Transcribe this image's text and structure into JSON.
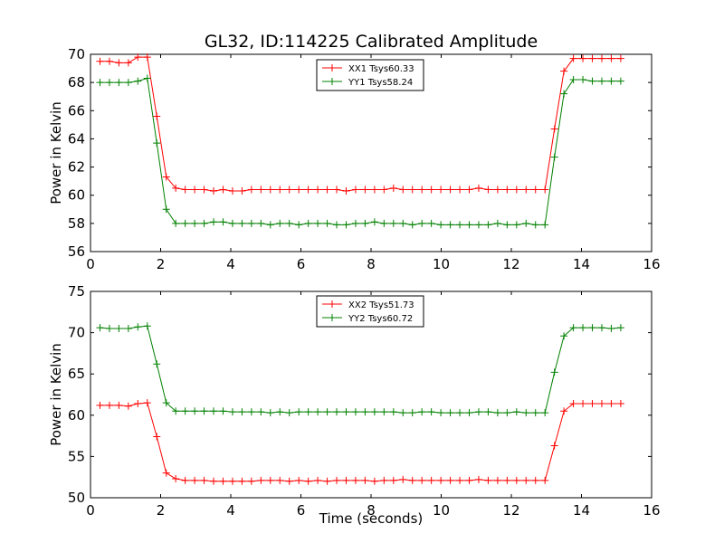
{
  "figure": {
    "title": "GL32, ID:114225 Calibrated Amplitude"
  },
  "chart_data": [
    {
      "type": "line",
      "title": "GL32, ID:114225 Calibrated Amplitude",
      "xlabel": "",
      "ylabel": "Power in Kelvin",
      "xlim": [
        0,
        16
      ],
      "ylim": [
        56,
        70
      ],
      "xticks": [
        0,
        2,
        4,
        6,
        8,
        10,
        12,
        14,
        16
      ],
      "yticks": [
        56,
        58,
        60,
        62,
        64,
        66,
        68,
        70
      ],
      "grid": false,
      "legend_position": "top-center",
      "x": [
        0.27,
        0.54,
        0.81,
        1.08,
        1.35,
        1.62,
        1.89,
        2.16,
        2.43,
        2.7,
        2.97,
        3.24,
        3.51,
        3.78,
        4.05,
        4.32,
        4.59,
        4.86,
        5.13,
        5.4,
        5.67,
        5.94,
        6.21,
        6.48,
        6.75,
        7.02,
        7.29,
        7.56,
        7.83,
        8.1,
        8.37,
        8.64,
        8.91,
        9.18,
        9.45,
        9.72,
        9.99,
        10.26,
        10.53,
        10.8,
        11.07,
        11.34,
        11.61,
        11.88,
        12.15,
        12.42,
        12.69,
        12.96,
        13.23,
        13.5,
        13.77,
        14.04,
        14.31,
        14.58,
        14.85,
        15.12
      ],
      "series": [
        {
          "name": "XX1 Tsys60.33",
          "color": "#ff0000",
          "values": [
            69.5,
            69.5,
            69.4,
            69.4,
            69.8,
            69.8,
            65.6,
            61.3,
            60.5,
            60.4,
            60.4,
            60.4,
            60.3,
            60.4,
            60.3,
            60.3,
            60.4,
            60.4,
            60.4,
            60.4,
            60.4,
            60.4,
            60.4,
            60.4,
            60.4,
            60.4,
            60.3,
            60.4,
            60.4,
            60.4,
            60.4,
            60.5,
            60.4,
            60.4,
            60.4,
            60.4,
            60.4,
            60.4,
            60.4,
            60.4,
            60.5,
            60.4,
            60.4,
            60.4,
            60.4,
            60.4,
            60.4,
            60.4,
            64.7,
            68.8,
            69.7,
            69.7,
            69.7,
            69.7,
            69.7,
            69.7
          ]
        },
        {
          "name": "YY1 Tsys58.24",
          "color": "#008000",
          "values": [
            68.0,
            68.0,
            68.0,
            68.0,
            68.1,
            68.3,
            63.7,
            59.0,
            58.0,
            58.0,
            58.0,
            58.0,
            58.1,
            58.1,
            58.0,
            58.0,
            58.0,
            58.0,
            57.9,
            58.0,
            58.0,
            57.9,
            58.0,
            58.0,
            58.0,
            57.9,
            57.9,
            58.0,
            58.0,
            58.1,
            58.0,
            58.0,
            58.0,
            57.9,
            58.0,
            58.0,
            57.9,
            57.9,
            57.9,
            57.9,
            57.9,
            57.9,
            58.0,
            57.9,
            57.9,
            58.0,
            57.9,
            57.9,
            62.7,
            67.2,
            68.2,
            68.2,
            68.1,
            68.1,
            68.1,
            68.1
          ]
        }
      ]
    },
    {
      "type": "line",
      "title": "",
      "xlabel": "Time (seconds)",
      "ylabel": "Power in Kelvin",
      "xlim": [
        0,
        16
      ],
      "ylim": [
        50,
        75
      ],
      "xticks": [
        0,
        2,
        4,
        6,
        8,
        10,
        12,
        14,
        16
      ],
      "yticks": [
        50,
        55,
        60,
        65,
        70,
        75
      ],
      "grid": false,
      "legend_position": "top-center",
      "x": [
        0.27,
        0.54,
        0.81,
        1.08,
        1.35,
        1.62,
        1.89,
        2.16,
        2.43,
        2.7,
        2.97,
        3.24,
        3.51,
        3.78,
        4.05,
        4.32,
        4.59,
        4.86,
        5.13,
        5.4,
        5.67,
        5.94,
        6.21,
        6.48,
        6.75,
        7.02,
        7.29,
        7.56,
        7.83,
        8.1,
        8.37,
        8.64,
        8.91,
        9.18,
        9.45,
        9.72,
        9.99,
        10.26,
        10.53,
        10.8,
        11.07,
        11.34,
        11.61,
        11.88,
        12.15,
        12.42,
        12.69,
        12.96,
        13.23,
        13.5,
        13.77,
        14.04,
        14.31,
        14.58,
        14.85,
        15.12
      ],
      "series": [
        {
          "name": "XX2 Tsys51.73",
          "color": "#ff0000",
          "values": [
            61.2,
            61.2,
            61.2,
            61.1,
            61.4,
            61.5,
            57.4,
            53.0,
            52.3,
            52.1,
            52.1,
            52.1,
            52.0,
            52.0,
            52.0,
            52.0,
            52.0,
            52.1,
            52.1,
            52.1,
            52.0,
            52.1,
            52.0,
            52.1,
            52.0,
            52.1,
            52.1,
            52.1,
            52.1,
            52.0,
            52.1,
            52.1,
            52.2,
            52.1,
            52.1,
            52.1,
            52.1,
            52.1,
            52.1,
            52.1,
            52.2,
            52.1,
            52.1,
            52.1,
            52.1,
            52.1,
            52.1,
            52.1,
            56.3,
            60.5,
            61.4,
            61.4,
            61.4,
            61.4,
            61.4,
            61.4
          ]
        },
        {
          "name": "YY2 Tsys60.72",
          "color": "#008000",
          "values": [
            70.6,
            70.5,
            70.5,
            70.5,
            70.7,
            70.8,
            66.2,
            61.5,
            60.5,
            60.5,
            60.5,
            60.5,
            60.5,
            60.5,
            60.4,
            60.4,
            60.4,
            60.4,
            60.3,
            60.4,
            60.3,
            60.4,
            60.4,
            60.4,
            60.4,
            60.4,
            60.4,
            60.4,
            60.4,
            60.4,
            60.4,
            60.4,
            60.3,
            60.3,
            60.4,
            60.4,
            60.3,
            60.3,
            60.3,
            60.3,
            60.4,
            60.4,
            60.3,
            60.3,
            60.4,
            60.3,
            60.3,
            60.3,
            65.2,
            69.6,
            70.6,
            70.6,
            70.6,
            70.6,
            70.5,
            70.6
          ]
        }
      ]
    }
  ]
}
